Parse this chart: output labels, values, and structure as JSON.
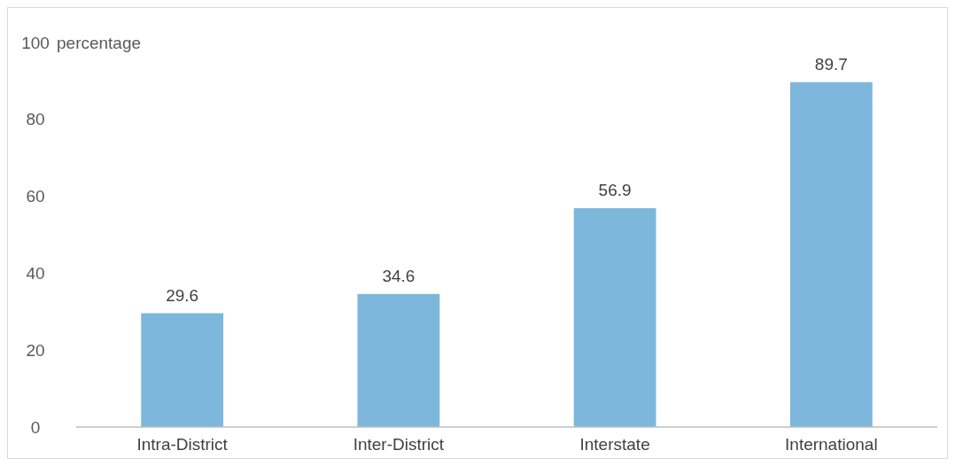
{
  "chart_data": {
    "type": "bar",
    "ylabel": "percentage",
    "categories": [
      "Intra-District",
      "Inter-District",
      "Interstate",
      "International"
    ],
    "values": [
      29.6,
      34.6,
      56.9,
      89.7
    ],
    "color": "#7db7db",
    "ylim": [
      0,
      100
    ],
    "yticks": [
      0,
      20,
      40,
      60,
      80,
      100
    ],
    "grid": false,
    "data_labels": true
  }
}
